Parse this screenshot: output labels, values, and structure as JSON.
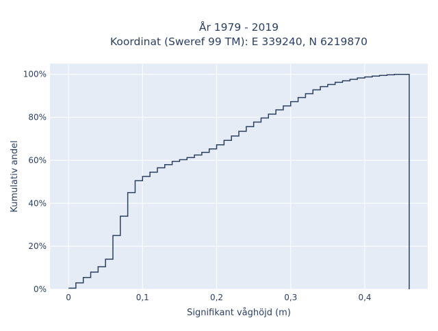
{
  "chart_data": {
    "type": "line",
    "shape": "step",
    "title_line1": "År 1979 - 2019",
    "title_line2": "Koordinat (Sweref 99 TM): E 339240, N 6219870",
    "xlabel": "Signifikant våghöjd (m)",
    "ylabel": "Kumulativ andel",
    "xlim": [
      -0.025,
      0.485
    ],
    "ylim": [
      0,
      1.05
    ],
    "x_ticks": [
      0,
      0.1,
      0.2,
      0.3,
      0.4
    ],
    "x_tick_labels": [
      "0",
      "0,1",
      "0,2",
      "0,3",
      "0,4"
    ],
    "y_ticks": [
      0,
      0.2,
      0.4,
      0.6,
      0.8,
      1.0
    ],
    "y_tick_labels": [
      "0%",
      "20%",
      "40%",
      "60%",
      "80%",
      "100%"
    ],
    "grid": true,
    "colors": {
      "line": "#2a3f5f",
      "plot_bg": "#e5ecf6",
      "grid": "#ffffff",
      "text": "#2a3f5f"
    },
    "series": [
      {
        "x": [
          0,
          0.01,
          0.02,
          0.03,
          0.04,
          0.05,
          0.06,
          0.07,
          0.08,
          0.09,
          0.1,
          0.11,
          0.12,
          0.13,
          0.14,
          0.15,
          0.16,
          0.17,
          0.18,
          0.19,
          0.2,
          0.21,
          0.22,
          0.23,
          0.24,
          0.25,
          0.26,
          0.27,
          0.28,
          0.29,
          0.3,
          0.31,
          0.32,
          0.33,
          0.34,
          0.35,
          0.36,
          0.37,
          0.38,
          0.39,
          0.4,
          0.41,
          0.42,
          0.43,
          0.44,
          0.45,
          0.46
        ],
        "y": [
          0.005,
          0.03,
          0.055,
          0.08,
          0.105,
          0.14,
          0.25,
          0.34,
          0.45,
          0.505,
          0.525,
          0.545,
          0.565,
          0.58,
          0.595,
          0.603,
          0.613,
          0.625,
          0.637,
          0.653,
          0.672,
          0.693,
          0.713,
          0.735,
          0.757,
          0.778,
          0.797,
          0.815,
          0.835,
          0.853,
          0.873,
          0.892,
          0.91,
          0.928,
          0.943,
          0.953,
          0.963,
          0.97,
          0.977,
          0.983,
          0.988,
          0.992,
          0.995,
          0.998,
          1.0,
          1.0,
          0
        ]
      }
    ]
  }
}
